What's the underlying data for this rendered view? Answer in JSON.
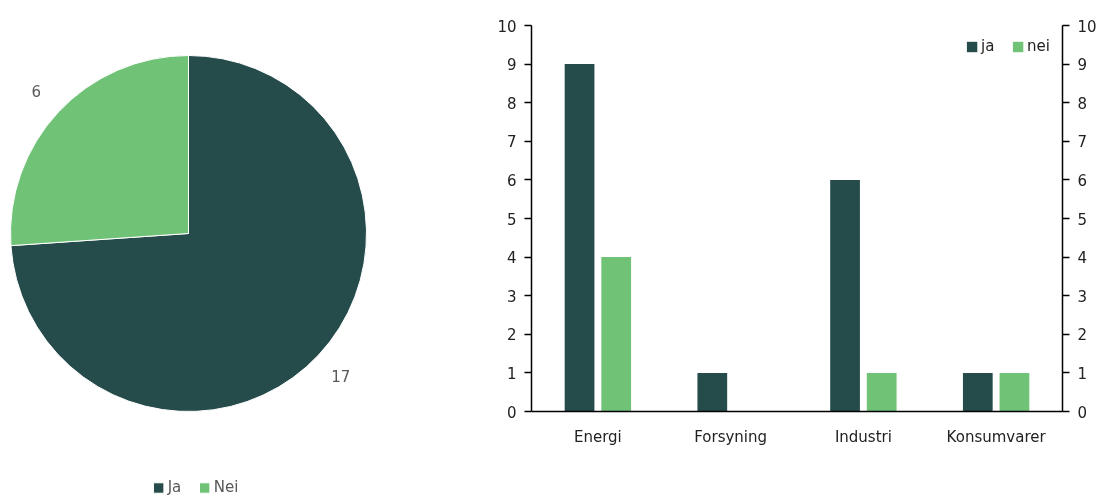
{
  "chart_data": [
    {
      "type": "pie",
      "categories": [
        "Ja",
        "Nei"
      ],
      "values": [
        17,
        6
      ],
      "colors": [
        "#264b4b",
        "#70c277"
      ],
      "data_labels": true,
      "legend": "bottom"
    },
    {
      "type": "bar",
      "categories": [
        "Energi",
        "Forsyning",
        "Industri",
        "Konsumvarer"
      ],
      "series": [
        {
          "name": "ja",
          "color": "#264b4b",
          "values": [
            9,
            1,
            6,
            1
          ]
        },
        {
          "name": "nei",
          "color": "#70c277",
          "values": [
            4,
            0,
            1,
            1
          ]
        }
      ],
      "ylim": [
        0,
        10
      ],
      "yticks": [
        0,
        1,
        2,
        3,
        4,
        5,
        6,
        7,
        8,
        9,
        10
      ],
      "y2lim": [
        0,
        10
      ],
      "y2ticks": [
        0,
        1,
        2,
        3,
        4,
        5,
        6,
        7,
        8,
        9,
        10
      ],
      "grid": false,
      "legend": "top right"
    }
  ]
}
